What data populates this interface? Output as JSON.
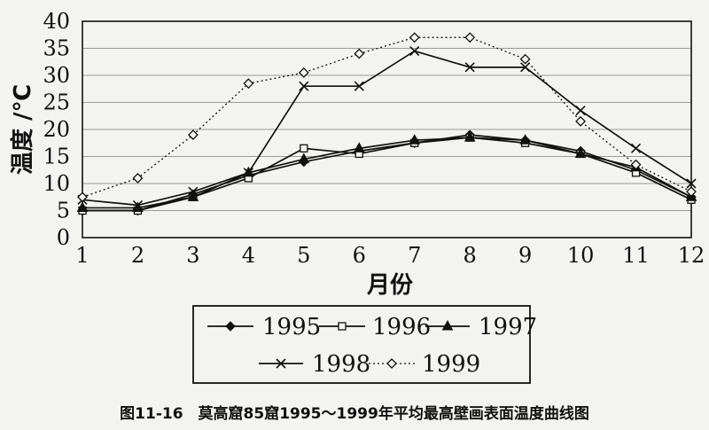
{
  "chart_data": {
    "type": "line",
    "title": "",
    "xlabel": "月份",
    "ylabel": "温度 /℃",
    "x": [
      1,
      2,
      3,
      4,
      5,
      6,
      7,
      8,
      9,
      10,
      11,
      12
    ],
    "xticks": [
      "1",
      "2",
      "3",
      "4",
      "5",
      "6",
      "7",
      "8",
      "9",
      "10",
      "11",
      "12"
    ],
    "ylim": [
      0,
      40
    ],
    "yticks": [
      "0",
      "5",
      "10",
      "15",
      "20",
      "25",
      "30",
      "35",
      "40"
    ],
    "grid": true,
    "legend_position": "bottom",
    "series": [
      {
        "name": "1995",
        "marker": "diamond-filled",
        "dash": "solid",
        "values": [
          5.0,
          5.0,
          8.0,
          11.5,
          14.0,
          16.0,
          17.5,
          19.0,
          18.0,
          16.0,
          12.5,
          7.5
        ]
      },
      {
        "name": "1996",
        "marker": "square-open",
        "dash": "solid",
        "values": [
          5.0,
          5.0,
          7.5,
          11.0,
          16.5,
          15.5,
          17.5,
          18.5,
          17.5,
          15.5,
          12.0,
          7.0
        ]
      },
      {
        "name": "1997",
        "marker": "triangle-filled",
        "dash": "solid",
        "values": [
          5.5,
          5.5,
          7.5,
          12.0,
          14.5,
          16.5,
          18.0,
          18.5,
          18.0,
          15.5,
          13.0,
          7.5
        ]
      },
      {
        "name": "1998",
        "marker": "x",
        "dash": "solid",
        "values": [
          7.0,
          6.0,
          8.5,
          12.0,
          28.0,
          28.0,
          34.5,
          31.5,
          31.5,
          23.5,
          16.5,
          10.0
        ]
      },
      {
        "name": "1999",
        "marker": "diamond-open",
        "dash": "dotted",
        "values": [
          7.5,
          11.0,
          19.0,
          28.5,
          30.5,
          34.0,
          37.0,
          37.0,
          33.0,
          21.5,
          13.5,
          8.5
        ]
      }
    ]
  },
  "caption": "图11-16　莫高窟85窟1995～1999年平均最高壁画表面温度曲线图"
}
